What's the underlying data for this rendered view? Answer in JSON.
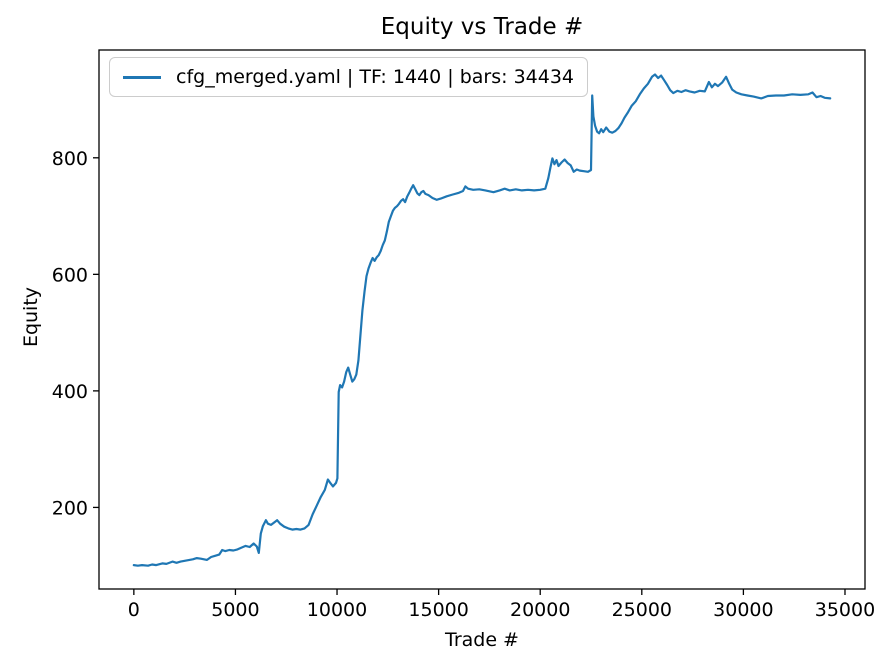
{
  "figure": {
    "title": "Equity vs Trade #",
    "xlabel": "Trade #",
    "ylabel": "Equity",
    "legend": {
      "label": "cfg_merged.yaml | TF: 1440 | bars: 34434",
      "line_color": "#1f77b4",
      "position": "upper left"
    }
  },
  "chart_data": {
    "type": "line",
    "title": "Equity vs Trade #",
    "xlabel": "Trade #",
    "ylabel": "Equity",
    "grid": false,
    "legend_position": "upper left",
    "xlim": [
      -1715,
      35985
    ],
    "ylim": [
      60,
      985
    ],
    "xticks": [
      0,
      5000,
      10000,
      15000,
      20000,
      25000,
      30000,
      35000
    ],
    "xtick_labels": [
      "0",
      "5000",
      "10000",
      "15000",
      "20000",
      "25000",
      "30000",
      "35000"
    ],
    "yticks": [
      200,
      400,
      600,
      800
    ],
    "ytick_labels": [
      "200",
      "400",
      "600",
      "800"
    ],
    "series": [
      {
        "name": "cfg_merged.yaml | TF: 1440 | bars: 34434",
        "color": "#1f77b4",
        "points": [
          [
            0,
            101
          ],
          [
            200,
            100
          ],
          [
            400,
            101
          ],
          [
            700,
            100
          ],
          [
            900,
            102
          ],
          [
            1100,
            101
          ],
          [
            1400,
            104
          ],
          [
            1600,
            103
          ],
          [
            1900,
            107
          ],
          [
            2100,
            105
          ],
          [
            2300,
            107
          ],
          [
            2600,
            109
          ],
          [
            2900,
            111
          ],
          [
            3100,
            113
          ],
          [
            3300,
            112
          ],
          [
            3600,
            110
          ],
          [
            3800,
            115
          ],
          [
            4000,
            117
          ],
          [
            4200,
            119
          ],
          [
            4350,
            127
          ],
          [
            4500,
            125
          ],
          [
            4700,
            127
          ],
          [
            4900,
            126
          ],
          [
            5100,
            128
          ],
          [
            5300,
            131
          ],
          [
            5500,
            134
          ],
          [
            5700,
            132
          ],
          [
            5900,
            138
          ],
          [
            6050,
            133
          ],
          [
            6150,
            122
          ],
          [
            6250,
            155
          ],
          [
            6350,
            168
          ],
          [
            6500,
            178
          ],
          [
            6600,
            172
          ],
          [
            6750,
            170
          ],
          [
            6900,
            174
          ],
          [
            7050,
            178
          ],
          [
            7200,
            172
          ],
          [
            7400,
            167
          ],
          [
            7600,
            164
          ],
          [
            7800,
            162
          ],
          [
            8000,
            163
          ],
          [
            8200,
            162
          ],
          [
            8400,
            164
          ],
          [
            8600,
            170
          ],
          [
            8800,
            188
          ],
          [
            9000,
            203
          ],
          [
            9200,
            218
          ],
          [
            9400,
            230
          ],
          [
            9550,
            248
          ],
          [
            9650,
            243
          ],
          [
            9800,
            236
          ],
          [
            9950,
            242
          ],
          [
            10020,
            250
          ],
          [
            10080,
            398
          ],
          [
            10150,
            410
          ],
          [
            10250,
            406
          ],
          [
            10350,
            416
          ],
          [
            10450,
            432
          ],
          [
            10550,
            440
          ],
          [
            10650,
            428
          ],
          [
            10750,
            416
          ],
          [
            10850,
            420
          ],
          [
            10950,
            428
          ],
          [
            11050,
            452
          ],
          [
            11150,
            495
          ],
          [
            11250,
            538
          ],
          [
            11350,
            570
          ],
          [
            11450,
            597
          ],
          [
            11550,
            610
          ],
          [
            11650,
            620
          ],
          [
            11750,
            628
          ],
          [
            11850,
            623
          ],
          [
            11950,
            629
          ],
          [
            12050,
            633
          ],
          [
            12150,
            640
          ],
          [
            12250,
            650
          ],
          [
            12350,
            658
          ],
          [
            12450,
            673
          ],
          [
            12550,
            690
          ],
          [
            12650,
            700
          ],
          [
            12750,
            709
          ],
          [
            12850,
            714
          ],
          [
            12950,
            717
          ],
          [
            13050,
            721
          ],
          [
            13150,
            726
          ],
          [
            13250,
            729
          ],
          [
            13350,
            724
          ],
          [
            13450,
            733
          ],
          [
            13550,
            740
          ],
          [
            13650,
            747
          ],
          [
            13750,
            753
          ],
          [
            13850,
            746
          ],
          [
            13950,
            739
          ],
          [
            14050,
            736
          ],
          [
            14150,
            741
          ],
          [
            14250,
            743
          ],
          [
            14350,
            738
          ],
          [
            14500,
            736
          ],
          [
            14700,
            731
          ],
          [
            14900,
            728
          ],
          [
            15100,
            730
          ],
          [
            15400,
            734
          ],
          [
            15700,
            737
          ],
          [
            16000,
            740
          ],
          [
            16200,
            743
          ],
          [
            16320,
            751
          ],
          [
            16450,
            747
          ],
          [
            16700,
            745
          ],
          [
            17000,
            746
          ],
          [
            17300,
            744
          ],
          [
            17700,
            741
          ],
          [
            18000,
            744
          ],
          [
            18250,
            747
          ],
          [
            18500,
            744
          ],
          [
            18800,
            746
          ],
          [
            19100,
            744
          ],
          [
            19400,
            745
          ],
          [
            19700,
            744
          ],
          [
            20000,
            745
          ],
          [
            20250,
            747
          ],
          [
            20400,
            765
          ],
          [
            20500,
            783
          ],
          [
            20600,
            799
          ],
          [
            20700,
            789
          ],
          [
            20800,
            796
          ],
          [
            20900,
            786
          ],
          [
            21050,
            792
          ],
          [
            21200,
            797
          ],
          [
            21350,
            791
          ],
          [
            21500,
            787
          ],
          [
            21650,
            776
          ],
          [
            21800,
            780
          ],
          [
            21950,
            778
          ],
          [
            22150,
            777
          ],
          [
            22350,
            776
          ],
          [
            22500,
            779
          ],
          [
            22560,
            907
          ],
          [
            22620,
            871
          ],
          [
            22700,
            855
          ],
          [
            22800,
            845
          ],
          [
            22900,
            842
          ],
          [
            23000,
            849
          ],
          [
            23100,
            844
          ],
          [
            23250,
            852
          ],
          [
            23400,
            845
          ],
          [
            23550,
            843
          ],
          [
            23700,
            846
          ],
          [
            23850,
            851
          ],
          [
            24000,
            859
          ],
          [
            24150,
            869
          ],
          [
            24300,
            877
          ],
          [
            24500,
            889
          ],
          [
            24700,
            897
          ],
          [
            24900,
            909
          ],
          [
            25100,
            919
          ],
          [
            25300,
            927
          ],
          [
            25500,
            939
          ],
          [
            25650,
            943
          ],
          [
            25800,
            937
          ],
          [
            25950,
            941
          ],
          [
            26100,
            933
          ],
          [
            26250,
            925
          ],
          [
            26400,
            916
          ],
          [
            26550,
            911
          ],
          [
            26750,
            915
          ],
          [
            26950,
            913
          ],
          [
            27150,
            916
          ],
          [
            27350,
            914
          ],
          [
            27600,
            912
          ],
          [
            27850,
            915
          ],
          [
            28100,
            914
          ],
          [
            28300,
            930
          ],
          [
            28450,
            921
          ],
          [
            28600,
            927
          ],
          [
            28750,
            923
          ],
          [
            28950,
            929
          ],
          [
            29150,
            939
          ],
          [
            29300,
            927
          ],
          [
            29450,
            917
          ],
          [
            29650,
            912
          ],
          [
            29900,
            909
          ],
          [
            30200,
            907
          ],
          [
            30500,
            905
          ],
          [
            30880,
            902
          ],
          [
            31200,
            906
          ],
          [
            31600,
            907
          ],
          [
            32000,
            907
          ],
          [
            32400,
            909
          ],
          [
            32800,
            908
          ],
          [
            33200,
            909
          ],
          [
            33400,
            912
          ],
          [
            33600,
            904
          ],
          [
            33800,
            906
          ],
          [
            34000,
            903
          ],
          [
            34270,
            902
          ]
        ]
      }
    ]
  }
}
